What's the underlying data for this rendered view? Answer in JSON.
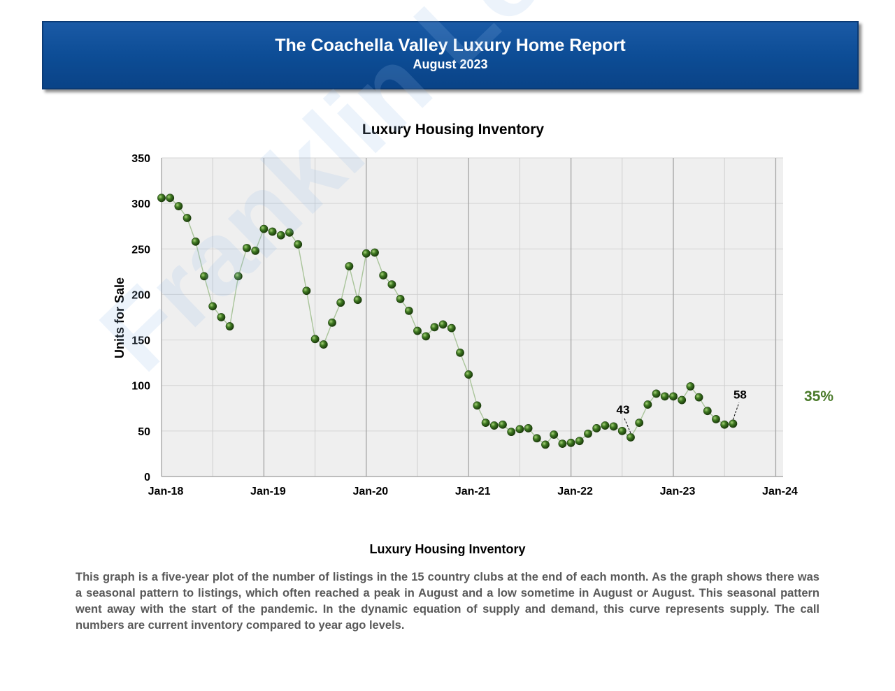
{
  "header": {
    "title": "The Coachella Valley Luxury Home Report",
    "subtitle": "August 2023"
  },
  "watermark": "Franklin Loan Center",
  "callout_percent": "35%",
  "colors": {
    "banner": "#0d4d96",
    "accent_green": "#4a7a2a",
    "marker": "#3a6b1f",
    "plot_bg": "#efefef"
  },
  "caption": {
    "title": "Luxury Housing Inventory",
    "body": "This graph is a five-year plot of the number of listings in the 15 country clubs at the end of each month. As the graph shows there was a seasonal pattern to listings, which often reached a peak in August and a low sometime in August or August. This seasonal pattern went away with the start of the pandemic. In the dynamic equation of supply and demand, this curve represents supply. The call numbers are current inventory compared to year ago levels."
  },
  "chart_data": {
    "type": "line",
    "title": "Luxury Housing Inventory",
    "xlabel": "",
    "ylabel": "Units for Sale",
    "ylim": [
      0,
      350
    ],
    "yticks": [
      0,
      50,
      100,
      150,
      200,
      250,
      300,
      350
    ],
    "xtick_labels": [
      "Jan-18",
      "Jan-19",
      "Jan-20",
      "Jan-21",
      "Jan-22",
      "Jan-23",
      "Jan-24"
    ],
    "grid": true,
    "start_month": "Jan-18",
    "values": [
      306,
      306,
      297,
      284,
      258,
      220,
      187,
      175,
      165,
      220,
      251,
      248,
      272,
      269,
      265,
      268,
      255,
      204,
      151,
      145,
      169,
      191,
      231,
      194,
      245,
      246,
      221,
      211,
      195,
      182,
      160,
      154,
      164,
      167,
      163,
      136,
      112,
      78,
      59,
      56,
      57,
      49,
      52,
      53,
      42,
      35,
      46,
      36,
      37,
      39,
      47,
      53,
      56,
      55,
      50,
      43,
      59,
      79,
      91,
      88,
      88,
      84,
      99,
      87,
      72,
      63,
      57,
      58
    ],
    "annotations": [
      {
        "label": "43",
        "month": "Aug-22",
        "value": 43
      },
      {
        "label": "58",
        "month": "Aug-23",
        "value": 58
      }
    ]
  }
}
